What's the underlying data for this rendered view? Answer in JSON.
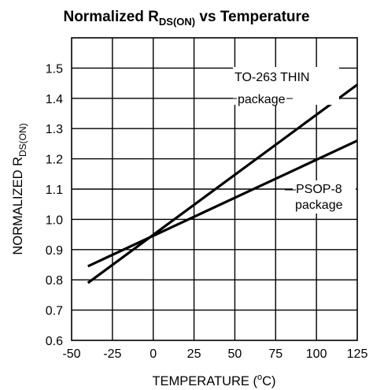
{
  "chart_data": {
    "type": "line",
    "title": {
      "main": "Normalized R",
      "sub": "DS(ON)",
      "tail": " vs Temperature"
    },
    "xlabel": "TEMPERATURE (",
    "xlabel_sup": "o",
    "xlabel_tail": "C)",
    "ylabel": {
      "main": "NORMALIZED R",
      "sub": "DS(ON)"
    },
    "xlim": [
      -50,
      125
    ],
    "ylim": [
      0.6,
      1.6
    ],
    "x_ticks": [
      "-50",
      "-25",
      "0",
      "25",
      "50",
      "75",
      "100",
      "125"
    ],
    "y_ticks": [
      "0.6",
      "0.7",
      "0.8",
      "0.9",
      "1.0",
      "1.1",
      "1.2",
      "1.3",
      "1.4",
      "1.5"
    ],
    "grid": true,
    "series": [
      {
        "points": [
          [
            -40,
            0.79
          ],
          [
            125,
            1.445
          ]
        ]
      },
      {
        "points": [
          [
            -40,
            0.845
          ],
          [
            125,
            1.26
          ]
        ]
      }
    ],
    "annotations": {
      "to263_line1": "TO-263 THIN",
      "to263_line2": "package",
      "psop_line1": "PSOP-8",
      "psop_line2": "package"
    }
  }
}
